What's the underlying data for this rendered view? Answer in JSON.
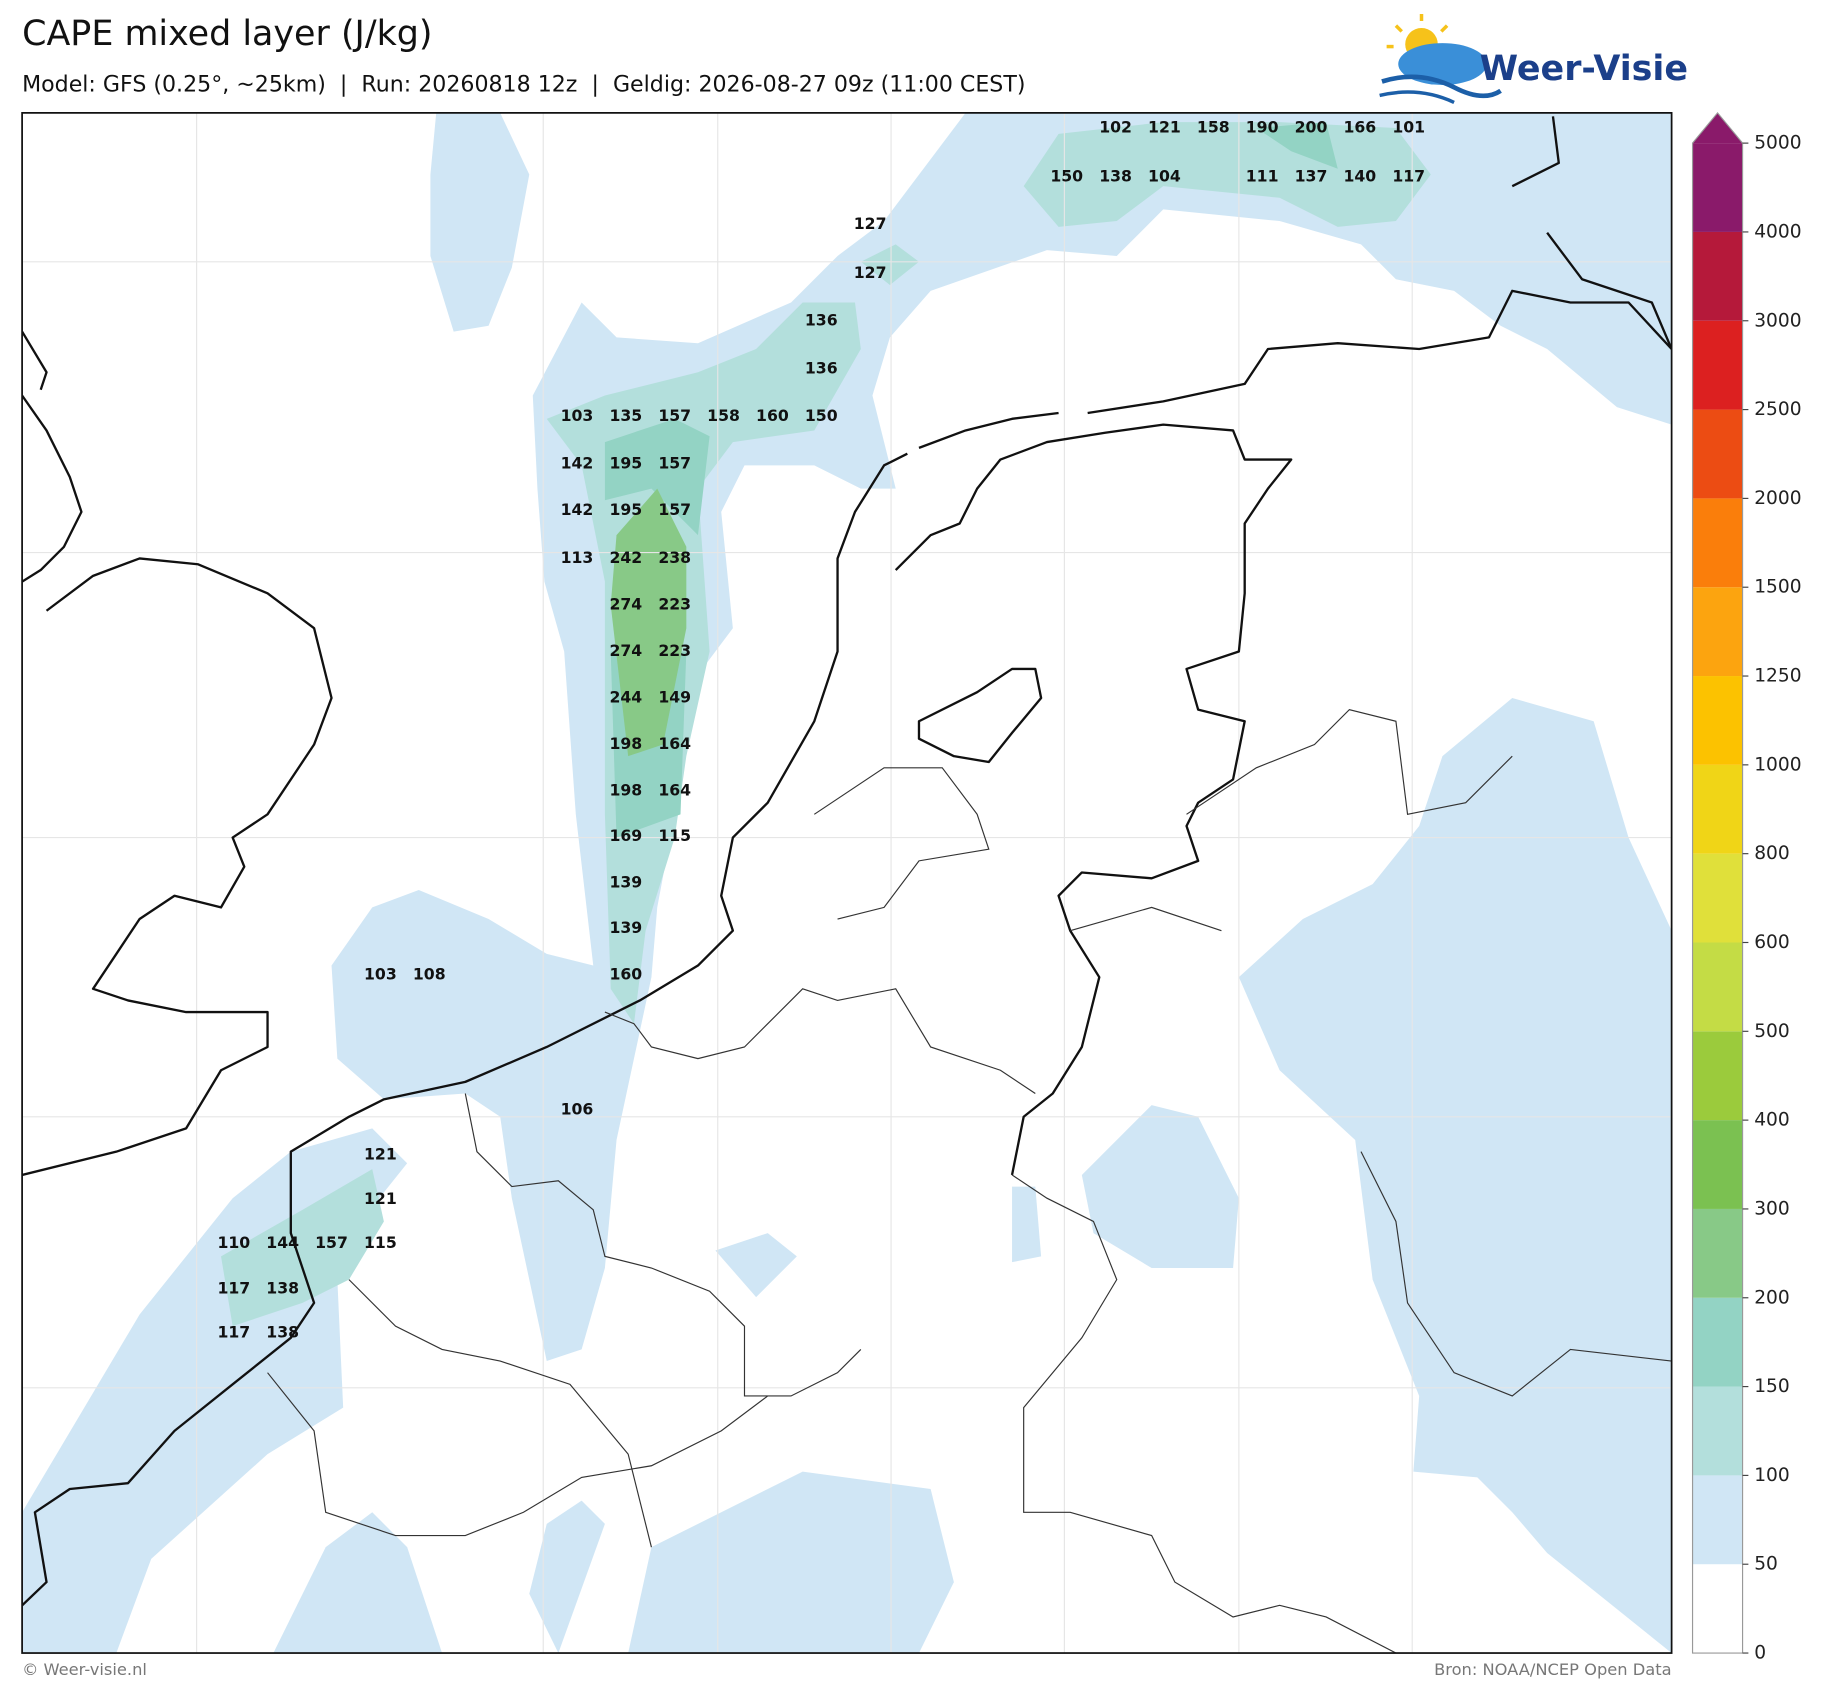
{
  "header": {
    "title": "CAPE mixed layer (J/kg)",
    "subtitle": "Model: GFS (0.25°, ~25km)  |  Run: 20260818 12z  |  Geldig: 2026-08-27 09z (11:00 CEST)",
    "logo": "Weer-Visie"
  },
  "map": {
    "cape_labels": [
      102,
      121,
      158,
      190,
      200,
      166,
      101,
      150,
      138,
      104,
      111,
      137,
      140,
      117,
      127,
      127,
      136,
      136,
      103,
      135,
      157,
      158,
      160,
      150,
      142,
      195,
      157,
      142,
      195,
      157,
      113,
      242,
      238,
      274,
      223,
      274,
      223,
      244,
      149,
      198,
      164,
      198,
      164,
      169,
      115,
      139,
      139,
      103,
      108,
      160,
      106,
      121,
      121,
      110,
      144,
      157,
      115,
      117,
      138,
      117,
      138
    ]
  },
  "colorbar": {
    "ticks": [
      0,
      50,
      100,
      150,
      200,
      300,
      400,
      500,
      600,
      800,
      1000,
      1250,
      1500,
      2000,
      2500,
      3000,
      4000,
      5000
    ],
    "colors": [
      "#ffffff",
      "#d0e6f5",
      "#b3dfdc",
      "#93d3c4",
      "#88c987",
      "#7bc151",
      "#9bcb3c",
      "#c4dc45",
      "#e0e03a",
      "#f0d517",
      "#fcc200",
      "#fca40f",
      "#fa7e0b",
      "#ec4c13",
      "#dc2020",
      "#b5193a",
      "#8a1a6a"
    ]
  },
  "footer": {
    "left": "© Weer-visie.nl",
    "right": "Bron: NOAA/NCEP Open Data"
  }
}
